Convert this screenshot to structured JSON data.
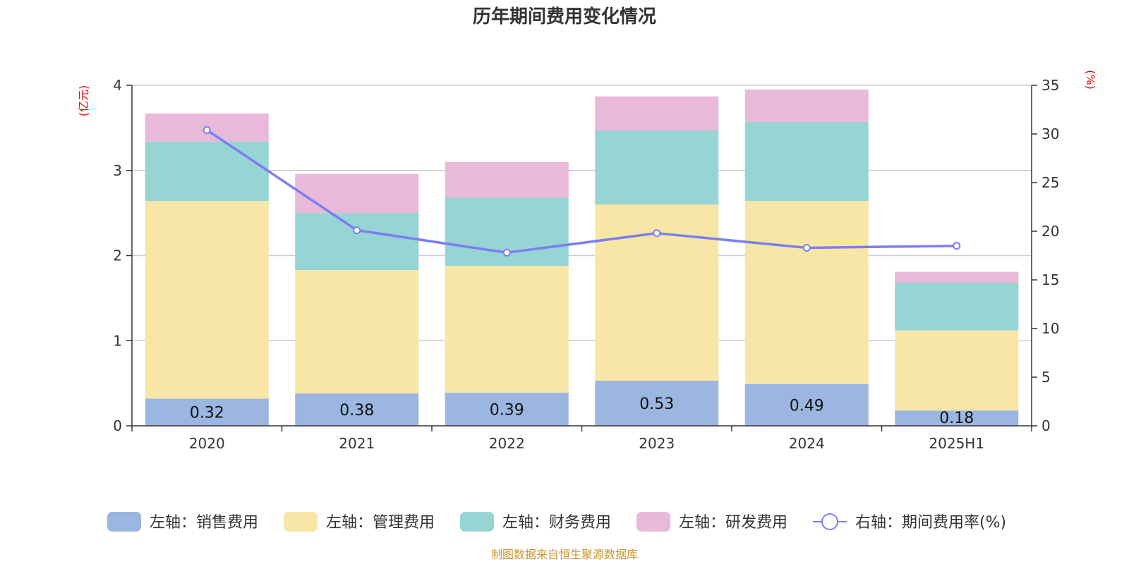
{
  "title": "历年期间费用变化情况",
  "source": "制图数据来自恒生聚源数据库",
  "chart_data": {
    "type": "bar",
    "stacked": true,
    "title": "历年期间费用变化情况",
    "categories": [
      "2020",
      "2021",
      "2022",
      "2023",
      "2024",
      "2025H1"
    ],
    "left_axis": {
      "unit": "(亿元)",
      "ylim": [
        0,
        4
      ],
      "ticks": [
        0,
        1,
        2,
        3,
        4
      ]
    },
    "right_axis": {
      "unit": "(%)",
      "ylim": [
        0,
        35
      ],
      "ticks": [
        0,
        5,
        10,
        15,
        20,
        25,
        30,
        35
      ]
    },
    "series": [
      {
        "name": "左轴：销售费用",
        "axis": "left",
        "kind": "bar",
        "color": "#9bb6e0",
        "values": [
          0.32,
          0.38,
          0.39,
          0.53,
          0.49,
          0.18
        ],
        "labels": [
          "0.32",
          "0.38",
          "0.39",
          "0.53",
          "0.49",
          "0.18"
        ]
      },
      {
        "name": "左轴：管理费用",
        "axis": "left",
        "kind": "bar",
        "color": "#f8e6a7",
        "values": [
          2.32,
          1.45,
          1.49,
          2.07,
          2.15,
          0.94
        ]
      },
      {
        "name": "左轴：财务费用",
        "axis": "left",
        "kind": "bar",
        "color": "#97d4d4",
        "values": [
          0.7,
          0.67,
          0.8,
          0.87,
          0.93,
          0.56
        ]
      },
      {
        "name": "左轴：研发费用",
        "axis": "left",
        "kind": "bar",
        "color": "#e8b9d9",
        "values": [
          0.33,
          0.46,
          0.42,
          0.4,
          0.38,
          0.13
        ]
      },
      {
        "name": "右轴：期间费用率(%)",
        "axis": "right",
        "kind": "line",
        "color": "#7b7ff0",
        "values": [
          30.4,
          20.1,
          17.8,
          19.8,
          18.3,
          18.5
        ]
      }
    ]
  }
}
